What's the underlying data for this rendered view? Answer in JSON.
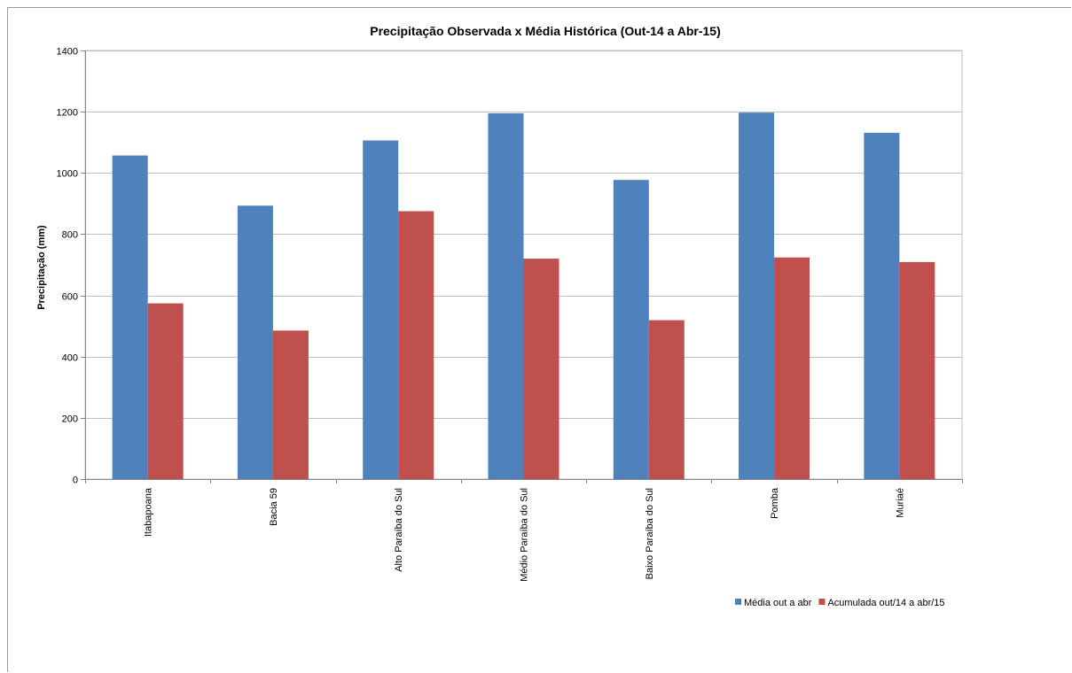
{
  "chart_data": {
    "type": "bar",
    "title": "Precipitação Observada x Média Histórica (Out-14 a Abr-15)",
    "xlabel": "",
    "ylabel": "Precipitação (mm)",
    "ylim": [
      0,
      1400
    ],
    "yticks": [
      0,
      200,
      400,
      600,
      800,
      1000,
      1200,
      1400
    ],
    "grid": true,
    "legend_position": "bottom-right",
    "categories": [
      "Itabapoana",
      "Bacia 59",
      "Alto Paraíba do Sul",
      "Médio Paraíba do Sul",
      "Baixo Paraíba do Sul",
      "Pomba",
      "Muriaé"
    ],
    "series": [
      {
        "name": "Média out a abr",
        "color": "#4F81BD",
        "values": [
          1057,
          893,
          1106,
          1195,
          977,
          1197,
          1131
        ]
      },
      {
        "name": "Acumulada out/14 a abr/15",
        "color": "#C0504D",
        "values": [
          574,
          485,
          875,
          720,
          519,
          724,
          709
        ]
      }
    ]
  }
}
